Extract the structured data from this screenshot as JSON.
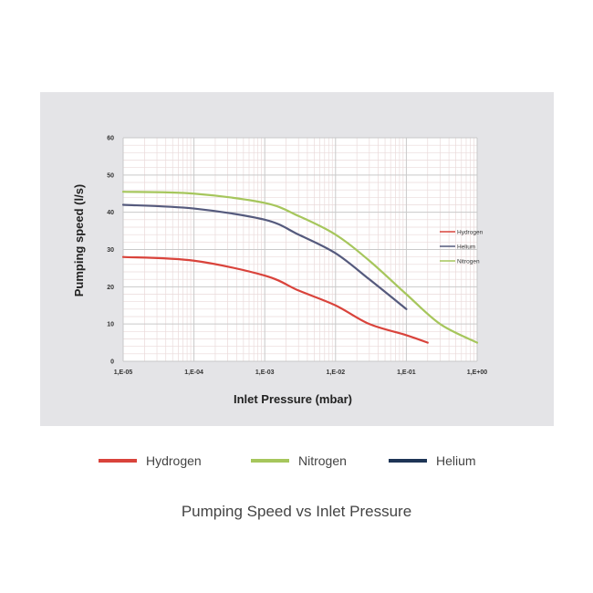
{
  "caption": "Pumping Speed vs Inlet Pressure",
  "chart_data": {
    "type": "line",
    "title": "",
    "xlabel": "Inlet Pressure (mbar)",
    "ylabel": "Pumping speed (l/s)",
    "xscale": "log",
    "xlim": [
      1e-05,
      1
    ],
    "ylim": [
      0,
      60
    ],
    "xticks": [
      "1,E-05",
      "1,E-04",
      "1,E-03",
      "1,E-02",
      "1,E-01",
      "1,E+00"
    ],
    "yticks": [
      "0",
      "10",
      "20",
      "30",
      "40",
      "50",
      "60"
    ],
    "grid": true,
    "legend_position": "right",
    "series": [
      {
        "name": "Hydrogen",
        "color": "#d9433b",
        "x": [
          1e-05,
          0.0001,
          0.001,
          0.003,
          0.01,
          0.03,
          0.1,
          0.2
        ],
        "y": [
          28,
          27,
          23,
          19,
          15,
          10,
          7,
          5
        ]
      },
      {
        "name": "Helium",
        "color": "#555a7d",
        "x": [
          1e-05,
          0.0001,
          0.001,
          0.003,
          0.01,
          0.03,
          0.1
        ],
        "y": [
          42,
          41,
          38,
          34,
          29,
          22,
          14
        ]
      },
      {
        "name": "Nitrogen",
        "color": "#a6c65c",
        "x": [
          1e-05,
          0.0001,
          0.001,
          0.003,
          0.01,
          0.03,
          0.1,
          0.3,
          1
        ],
        "y": [
          45.5,
          45,
          42.5,
          39,
          34,
          27,
          18,
          10,
          5
        ]
      }
    ]
  },
  "bottom_legend": [
    {
      "label": "Hydrogen",
      "color": "#d9433b"
    },
    {
      "label": "Nitrogen",
      "color": "#a6c65c"
    },
    {
      "label": "Helium",
      "color": "#1e3556"
    }
  ]
}
